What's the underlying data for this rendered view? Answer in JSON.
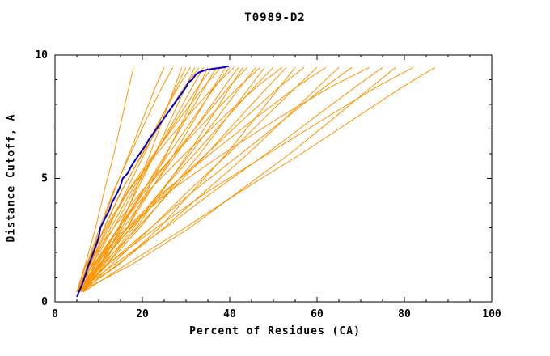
{
  "chart_data": {
    "type": "line",
    "title": "T0989-D2",
    "xlabel": "Percent of Residues (CA)",
    "ylabel": "Distance Cutoff, A",
    "xlim": [
      0,
      100
    ],
    "ylim": [
      0,
      10
    ],
    "x_major_ticks": [
      0,
      20,
      40,
      60,
      80,
      100
    ],
    "x_minor_step": 5,
    "y_major_ticks": [
      0,
      5,
      10
    ],
    "y_minor_step": 1,
    "grid": false,
    "legend": "none",
    "colors": {
      "model_lines": "#ff9400",
      "highlight_line": "#0000cc",
      "axis": "#000000",
      "background": "#ffffff"
    },
    "y_levels": [
      0.4,
      1.5,
      3.0,
      4.5,
      6.0,
      7.5,
      8.7,
      9.5
    ],
    "series_x": [
      [
        5,
        6.9,
        9.3,
        11.3,
        13.5,
        15.4,
        16.9,
        18
      ],
      [
        5.5,
        7.4,
        10.5,
        13.6,
        17,
        20.3,
        23,
        25
      ],
      [
        6,
        7.3,
        10.2,
        13.4,
        17.3,
        21.2,
        24.5,
        27
      ],
      [
        6.5,
        10.6,
        14.9,
        18.4,
        21.8,
        24.9,
        27.4,
        29
      ],
      [
        5,
        8,
        12.3,
        16.3,
        20.5,
        24.5,
        27.8,
        30
      ],
      [
        5.5,
        7.5,
        11.3,
        15.3,
        19.9,
        24.4,
        28.2,
        31
      ],
      [
        6,
        9.8,
        14.5,
        18.7,
        22.9,
        26.8,
        29.9,
        32
      ],
      [
        6.5,
        7.9,
        11.2,
        15.2,
        20.1,
        25.2,
        29.6,
        33
      ],
      [
        5,
        8.5,
        13.4,
        18.1,
        23,
        27.7,
        31.4,
        34
      ],
      [
        5.5,
        10.9,
        16.5,
        21.1,
        25.6,
        29.7,
        32.9,
        35
      ],
      [
        6,
        8.3,
        12.8,
        17.5,
        22.9,
        28.3,
        32.7,
        36
      ],
      [
        6.5,
        10.2,
        15.3,
        20.2,
        25.4,
        30.3,
        34.3,
        37
      ],
      [
        5,
        7.1,
        11.6,
        16.7,
        22.7,
        28.9,
        34,
        38
      ],
      [
        5.5,
        10.5,
        16.5,
        21.8,
        27.3,
        32.3,
        36.3,
        39
      ],
      [
        6,
        9.3,
        14.7,
        20.1,
        26.1,
        31.9,
        36.6,
        40
      ],
      [
        6.5,
        7.9,
        11.9,
        16.9,
        23.3,
        30.3,
        36.3,
        41
      ],
      [
        5,
        9.4,
        15.7,
        21.7,
        27.9,
        33.9,
        38.7,
        42
      ],
      [
        5.5,
        11.7,
        18.6,
        24.6,
        30.5,
        35.9,
        40.1,
        43
      ],
      [
        6,
        9,
        14.6,
        20.6,
        27.4,
        34.2,
        39.8,
        44
      ],
      [
        6.5,
        11.2,
        18,
        24.3,
        31,
        37.3,
        42.4,
        46
      ],
      [
        5,
        7.6,
        13.4,
        19.9,
        27.5,
        35.4,
        42,
        47
      ],
      [
        5.5,
        11.8,
        19.4,
        26.2,
        33.2,
        39.5,
        44.6,
        48
      ],
      [
        6,
        10.3,
        17.3,
        24.3,
        32,
        39.5,
        45.6,
        50
      ],
      [
        6.5,
        8.8,
        14.5,
        21.4,
        29.8,
        38.6,
        46.1,
        52
      ],
      [
        5,
        10.8,
        18.9,
        26.6,
        34.8,
        42.4,
        48.7,
        53
      ],
      [
        5.5,
        14.6,
        23.9,
        31.6,
        39.3,
        46.1,
        51.4,
        55
      ],
      [
        6,
        10,
        17.5,
        25.6,
        34.7,
        43.8,
        51.3,
        57
      ],
      [
        6.5,
        12.9,
        22,
        30.6,
        39.7,
        48.2,
        55.2,
        60
      ],
      [
        5,
        8.6,
        16.4,
        25.2,
        35.6,
        46.3,
        55.2,
        62
      ],
      [
        5.5,
        14.3,
        25,
        34.5,
        44.2,
        53.1,
        60.2,
        65
      ],
      [
        6,
        12,
        21.9,
        31.8,
        42.6,
        53.2,
        61.7,
        68
      ],
      [
        6.5,
        9.3,
        16.7,
        26.3,
        38.5,
        51.6,
        63,
        72
      ],
      [
        5,
        13.4,
        25.3,
        36.5,
        48.4,
        59.6,
        68.7,
        75
      ],
      [
        5.5,
        17.5,
        30.9,
        42.3,
        53.8,
        64.2,
        72.4,
        78
      ],
      [
        6,
        11.9,
        23.2,
        35.2,
        48.8,
        62.4,
        73.6,
        82
      ],
      [
        6.5,
        16.2,
        29.8,
        42.7,
        56.4,
        69.2,
        79.5,
        87
      ]
    ],
    "highlight_series": {
      "name": "highlighted-model",
      "points": [
        [
          5,
          0.2
        ],
        [
          6.2,
          0.7
        ],
        [
          7,
          1.1
        ],
        [
          7.5,
          1.4
        ],
        [
          8.6,
          1.9
        ],
        [
          9.4,
          2.3
        ],
        [
          10,
          2.6
        ],
        [
          10.4,
          3.0
        ],
        [
          11.5,
          3.4
        ],
        [
          12.4,
          3.7
        ],
        [
          13,
          4.0
        ],
        [
          14.2,
          4.4
        ],
        [
          15,
          4.7
        ],
        [
          15.5,
          5.0
        ],
        [
          16.6,
          5.2
        ],
        [
          17.5,
          5.5
        ],
        [
          18.6,
          5.8
        ],
        [
          19.4,
          6.0
        ],
        [
          20.6,
          6.3
        ],
        [
          21.6,
          6.6
        ],
        [
          22.4,
          6.8
        ],
        [
          23.6,
          7.1
        ],
        [
          24.4,
          7.3
        ],
        [
          25.6,
          7.6
        ],
        [
          26.4,
          7.8
        ],
        [
          27.6,
          8.1
        ],
        [
          28.4,
          8.3
        ],
        [
          29.2,
          8.5
        ],
        [
          30,
          8.7
        ],
        [
          30.6,
          8.9
        ],
        [
          31.4,
          9.0
        ],
        [
          32.2,
          9.2
        ],
        [
          33,
          9.3
        ],
        [
          34.6,
          9.4
        ],
        [
          36.5,
          9.45
        ],
        [
          38.5,
          9.5
        ],
        [
          39.8,
          9.55
        ]
      ]
    }
  }
}
